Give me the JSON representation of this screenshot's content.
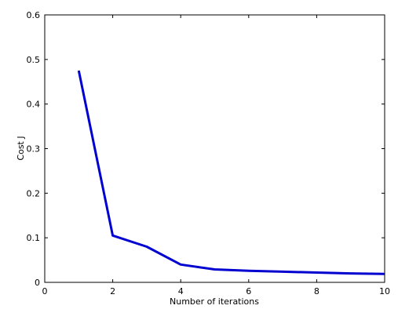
{
  "chart_data": {
    "type": "line",
    "title": "",
    "xlabel": "Number of iterations",
    "ylabel": "Cost J",
    "xlim": [
      0,
      10
    ],
    "ylim": [
      0,
      0.6
    ],
    "xticks": [
      0,
      2,
      4,
      6,
      8,
      10
    ],
    "yticks": [
      0,
      0.1,
      0.2,
      0.3,
      0.4,
      0.5,
      0.6
    ],
    "xtick_labels": [
      "0",
      "2",
      "4",
      "6",
      "8",
      "10"
    ],
    "ytick_labels": [
      "0",
      "0.1",
      "0.2",
      "0.3",
      "0.4",
      "0.5",
      "0.6"
    ],
    "grid": false,
    "legend": null,
    "series": [
      {
        "color": "#0000d0",
        "x": [
          1,
          2,
          3,
          4,
          5,
          6,
          7,
          8,
          9,
          10
        ],
        "y": [
          0.475,
          0.105,
          0.08,
          0.04,
          0.029,
          0.026,
          0.024,
          0.022,
          0.02,
          0.019
        ]
      }
    ]
  }
}
